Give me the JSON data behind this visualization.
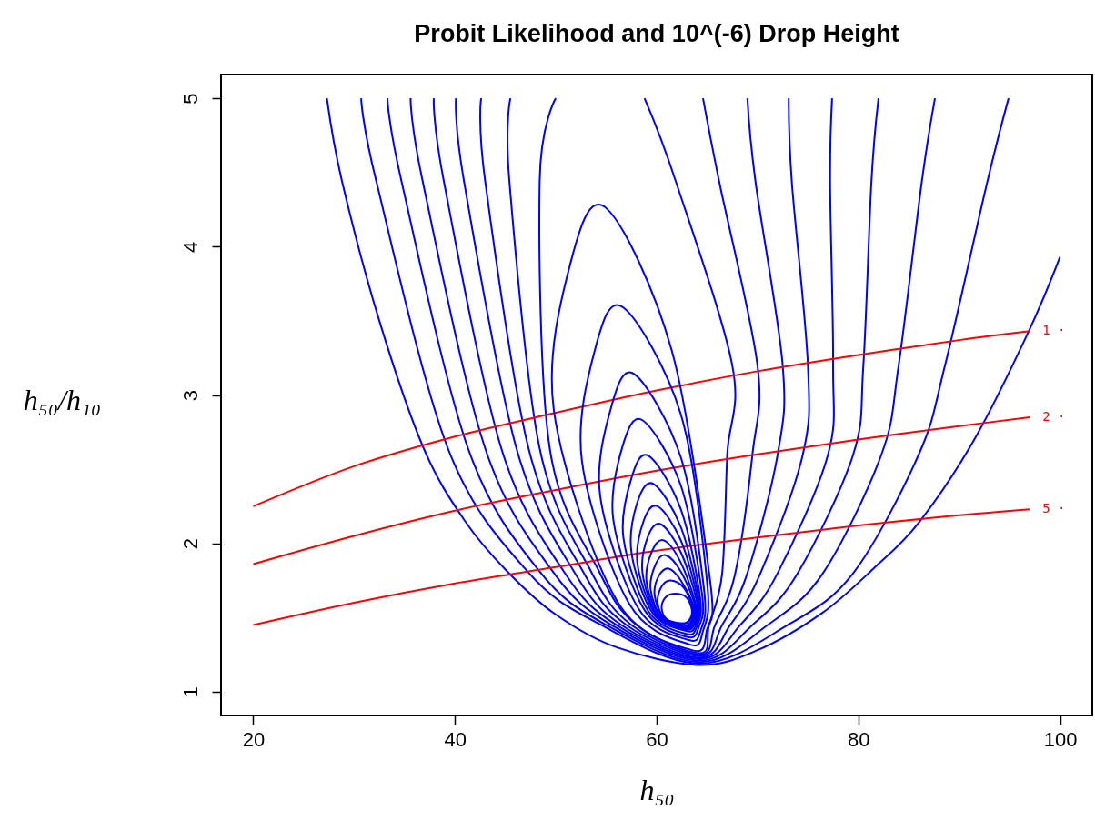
{
  "chart_data": {
    "type": "line",
    "title": "Probit Likelihood and 10^(-6) Drop Height",
    "xlabel": "h₅₀",
    "ylabel": "h₅₀/h₁₀",
    "xlim": [
      16.8,
      103.2
    ],
    "ylim": [
      0.84,
      5.16
    ],
    "xticks": [
      20,
      40,
      60,
      80,
      100
    ],
    "yticks": [
      1,
      2,
      3,
      4,
      5
    ],
    "grid": false,
    "series": [
      {
        "color": "#0000ff",
        "x": [
          50.0,
          48.4,
          49.4,
          54.3,
          58.0,
          64.3,
          65.2,
          66.5,
          67.0,
          67.5,
          61.9,
          58.8
        ],
        "values": [
          5,
          4.44,
          2.64,
          1.81,
          1.45,
          1.26,
          1.45,
          1.8,
          2.6,
          3.2,
          4.44,
          5
        ]
      },
      {
        "color": "#0000ff",
        "x": [
          45.5,
          45.4,
          48.4,
          53.5,
          57.5,
          64.3,
          65.8,
          67.8,
          69.5,
          70.0,
          66.2,
          64.6
        ],
        "values": [
          5,
          4.44,
          2.64,
          1.81,
          1.45,
          1.25,
          1.45,
          1.8,
          2.6,
          3.2,
          4.44,
          5
        ]
      },
      {
        "color": "#0000ff",
        "x": [
          42.6,
          43.0,
          47.3,
          52.7,
          57.0,
          64.3,
          66.5,
          69.0,
          72.0,
          72.5,
          69.8,
          69.0
        ],
        "values": [
          5,
          4.44,
          2.64,
          1.81,
          1.45,
          1.24,
          1.45,
          1.8,
          2.6,
          3.2,
          4.44,
          5
        ]
      },
      {
        "color": "#0000ff",
        "x": [
          40.1,
          40.9,
          46.1,
          51.8,
          56.5,
          64.3,
          67.3,
          70.3,
          74.5,
          75.0,
          73.4,
          73.1
        ],
        "values": [
          5,
          4.44,
          2.64,
          1.81,
          1.45,
          1.23,
          1.45,
          1.8,
          2.6,
          3.2,
          4.44,
          5
        ]
      },
      {
        "color": "#0000ff",
        "x": [
          37.9,
          38.9,
          44.6,
          50.8,
          56.0,
          64.3,
          68.3,
          72.0,
          77.0,
          77.5,
          77.2,
          77.4
        ],
        "values": [
          5,
          4.44,
          2.64,
          1.81,
          1.45,
          1.22,
          1.45,
          1.8,
          2.6,
          3.2,
          4.44,
          5
        ]
      },
      {
        "color": "#0000ff",
        "x": [
          35.6,
          36.8,
          43.0,
          49.7,
          55.5,
          64.3,
          69.5,
          74.0,
          79.5,
          80.5,
          81.3,
          82.0
        ],
        "values": [
          5,
          4.44,
          2.64,
          1.81,
          1.45,
          1.21,
          1.45,
          1.8,
          2.6,
          3.2,
          4.44,
          5
        ]
      },
      {
        "color": "#0000ff",
        "x": [
          33.3,
          34.7,
          41.3,
          48.4,
          55.0,
          64.3,
          71.0,
          76.5,
          82.3,
          84.0,
          86.3,
          87.6
        ],
        "values": [
          5,
          4.44,
          2.64,
          1.81,
          1.45,
          1.2,
          1.45,
          1.8,
          2.6,
          3.2,
          4.44,
          5
        ]
      },
      {
        "color": "#0000ff",
        "x": [
          30.7,
          32.2,
          39.3,
          47.2,
          54.5,
          64.3,
          73.0,
          79.5,
          86.0,
          88.6,
          92.8,
          94.9
        ],
        "values": [
          5,
          4.44,
          2.64,
          1.81,
          1.45,
          1.19,
          1.45,
          1.8,
          2.6,
          3.2,
          4.44,
          5
        ]
      },
      {
        "color": "#0000ff",
        "x": [
          27.3,
          28.8,
          32.5,
          36.9,
          41,
          45.2,
          50,
          56,
          64.2,
          70,
          76.4,
          81.5,
          86,
          91.5,
          96.9,
          100
        ],
        "values": [
          5,
          4.44,
          3.5,
          2.64,
          2.15,
          1.81,
          1.52,
          1.3,
          1.18,
          1.28,
          1.53,
          1.83,
          2.14,
          2.7,
          3.43,
          3.93
        ]
      },
      {
        "name": "1 ·",
        "color": "#ff0000",
        "x": [
          20,
          30,
          40,
          50,
          60,
          70,
          80,
          90,
          97
        ],
        "values": [
          2.25,
          2.52,
          2.72,
          2.88,
          3.03,
          3.16,
          3.27,
          3.37,
          3.43
        ]
      },
      {
        "name": "2 ·",
        "color": "#ff0000",
        "x": [
          20,
          30,
          40,
          50,
          60,
          70,
          80,
          90,
          97
        ],
        "values": [
          1.86,
          2.05,
          2.22,
          2.36,
          2.49,
          2.6,
          2.7,
          2.79,
          2.85
        ]
      },
      {
        "name": "5 ·",
        "color": "#ff0000",
        "x": [
          20,
          30,
          40,
          50,
          60,
          70,
          80,
          90,
          97
        ],
        "values": [
          1.45,
          1.6,
          1.73,
          1.84,
          1.95,
          2.04,
          2.12,
          2.19,
          2.23
        ]
      }
    ]
  }
}
